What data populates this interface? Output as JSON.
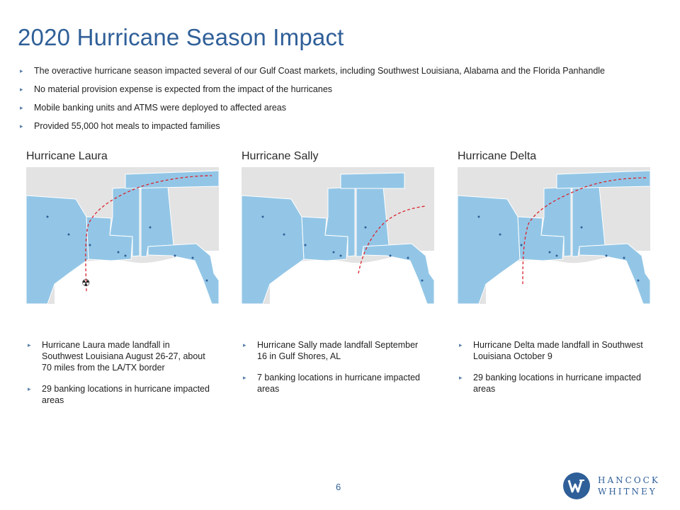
{
  "title": "2020 Hurricane Season Impact",
  "bullets": [
    "The overactive hurricane season impacted several of our Gulf Coast markets, including Southwest Louisiana, Alabama and the Florida Panhandle",
    "No material provision expense is expected from the impact of the hurricanes",
    "Mobile banking units and ATMS were deployed to affected areas",
    "Provided 55,000 hot meals to impacted families"
  ],
  "hurricanes": [
    {
      "name": "Hurricane Laura",
      "notes": [
        "Hurricane Laura made landfall in Southwest Louisiana August 26-27, about 70 miles from the LA/TX border",
        "29 banking locations in hurricane impacted areas"
      ]
    },
    {
      "name": "Hurricane Sally",
      "notes": [
        "Hurricane Sally made landfall September 16 in Gulf Shores, AL",
        "7 banking locations in hurricane impacted areas"
      ]
    },
    {
      "name": "Hurricane Delta",
      "notes": [
        "Hurricane Delta made landfall in Southwest Louisiana October 9",
        "29 banking locations in hurricane impacted areas"
      ]
    }
  ],
  "page_number": "6",
  "logo": {
    "line1": "HANCOCK",
    "line2": "WHITNEY"
  },
  "colors": {
    "title": "#2f5f98",
    "map_water": "#ffffff",
    "map_state_impacted": "#93c6e6",
    "map_state_other": "#e3e3e3",
    "track": "#d9232d"
  }
}
